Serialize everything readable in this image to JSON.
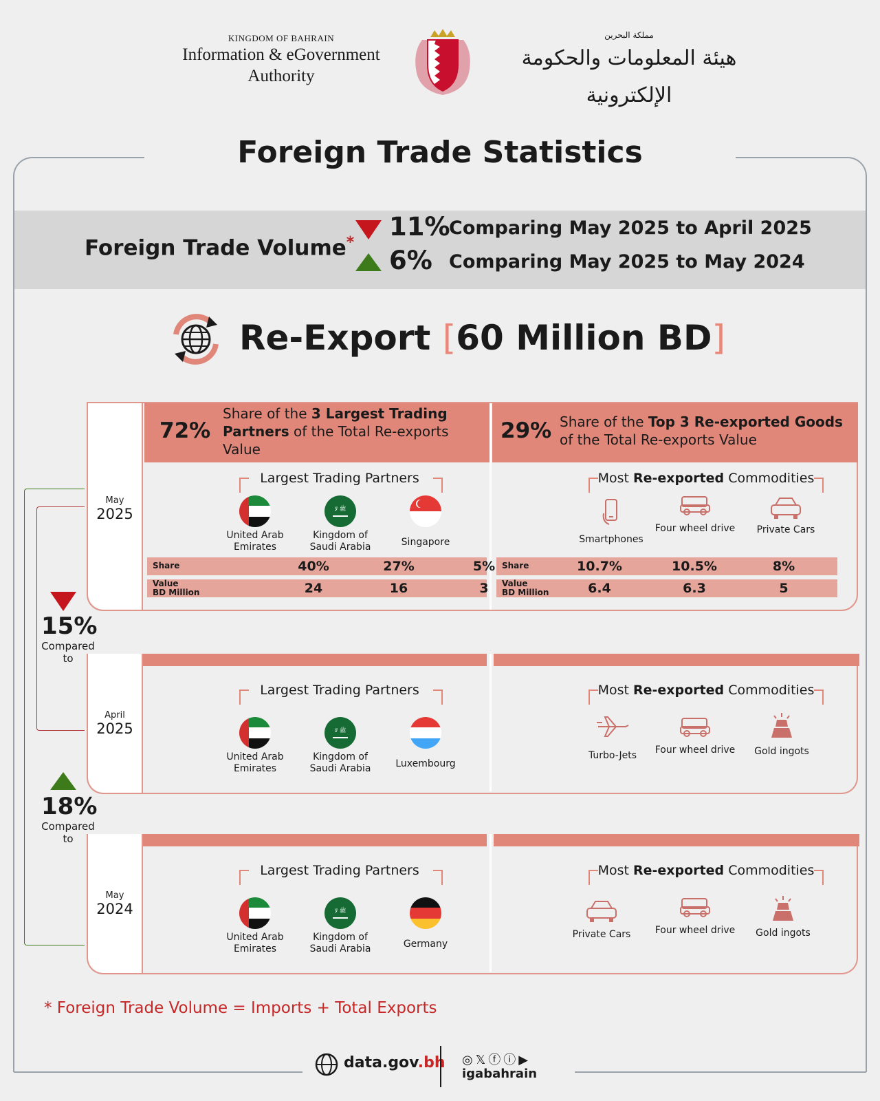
{
  "header": {
    "kingdom_en": "KINGDOM OF BAHRAIN",
    "authority_en_1": "Information & eGovernment",
    "authority_en_2": "Authority",
    "kingdom_ar": "مملكة البحرين",
    "authority_ar": "هيئة المعلومات والحكومة الإلكترونية"
  },
  "title": "Foreign Trade Statistics",
  "volume": {
    "label": "Foreign Trade Volume",
    "star": "*",
    "changes": [
      {
        "direction": "down",
        "pct": "11%",
        "text": "Comparing May 2025 to April 2025"
      },
      {
        "direction": "up",
        "pct": "6%",
        "text": "Comparing May 2025 to May 2024"
      }
    ]
  },
  "reexport": {
    "label": "Re-Export",
    "bracket_open": "[",
    "value": "60 Million BD",
    "bracket_close": "]"
  },
  "may2025": {
    "month": "May",
    "year": "2025",
    "partners_share_pct": "72%",
    "partners_share_text": [
      "Share of the ",
      "3 Largest Trading Partners",
      " of the Total Re-exports Value"
    ],
    "goods_share_pct": "29%",
    "goods_share_text": [
      "Share of the ",
      "Top 3 Re-exported Goods",
      " of the Total Re-exports Value"
    ],
    "partners_heading": "Largest Trading Partners",
    "commodities_heading_pre": "Most ",
    "commodities_heading_bold": "Re-exported",
    "commodities_heading_post": " Commodities",
    "partners": [
      {
        "name": "United Arab Emirates",
        "share": "40%",
        "value": "24"
      },
      {
        "name": "Kingdom of Saudi Arabia",
        "share": "27%",
        "value": "16"
      },
      {
        "name": "Singapore",
        "share": "5%",
        "value": "3"
      }
    ],
    "commodities": [
      {
        "name": "Smartphones",
        "icon": "smartphone-icon",
        "share": "10.7%",
        "value": "6.4"
      },
      {
        "name": "Four wheel drive",
        "icon": "suv-icon",
        "share": "10.5%",
        "value": "6.3"
      },
      {
        "name": "Private Cars",
        "icon": "car-icon",
        "share": "8%",
        "value": "5"
      }
    ],
    "row_share_label": "Share",
    "row_value_label_1": "Value",
    "row_value_label_2": "BD Million"
  },
  "apr2025": {
    "month": "April",
    "year": "2025",
    "partners_heading": "Largest Trading Partners",
    "commodities_heading_pre": "Most ",
    "commodities_heading_bold": "Re-exported",
    "commodities_heading_post": " Commodities",
    "partners": [
      {
        "name": "United Arab Emirates"
      },
      {
        "name": "Kingdom of Saudi Arabia"
      },
      {
        "name": "Luxembourg"
      }
    ],
    "commodities": [
      {
        "name": "Turbo-Jets",
        "icon": "jet-icon"
      },
      {
        "name": "Four wheel drive",
        "icon": "suv-icon"
      },
      {
        "name": "Gold ingots",
        "icon": "gold-ingots-icon"
      }
    ]
  },
  "may2024": {
    "month": "May",
    "year": "2024",
    "partners_heading": "Largest Trading Partners",
    "commodities_heading_pre": "Most ",
    "commodities_heading_bold": "Re-exported",
    "commodities_heading_post": " Commodities",
    "partners": [
      {
        "name": "United Arab Emirates"
      },
      {
        "name": "Kingdom of Saudi Arabia"
      },
      {
        "name": "Germany"
      }
    ],
    "commodities": [
      {
        "name": "Private Cars",
        "icon": "car-icon"
      },
      {
        "name": "Four wheel drive",
        "icon": "suv-icon"
      },
      {
        "name": "Gold ingots",
        "icon": "gold-ingots-icon"
      }
    ]
  },
  "comparisons": [
    {
      "direction": "down",
      "pct": "15%",
      "label_1": "Compared",
      "label_2": "to"
    },
    {
      "direction": "up",
      "pct": "18%",
      "label_1": "Compared",
      "label_2": "to"
    }
  ],
  "footnote": "*  Foreign Trade Volume = Imports + Total Exports",
  "footer": {
    "site_main": "data.gov",
    "site_tld": ".bh",
    "social": "◎𝕏ⓕⓘ▶",
    "handle": "igabahrain"
  },
  "colors": {
    "accent": "#e0877a",
    "row": "#e6a59b",
    "down": "#c4161c",
    "up": "#3d7a1a",
    "footnote": "#c62828"
  }
}
